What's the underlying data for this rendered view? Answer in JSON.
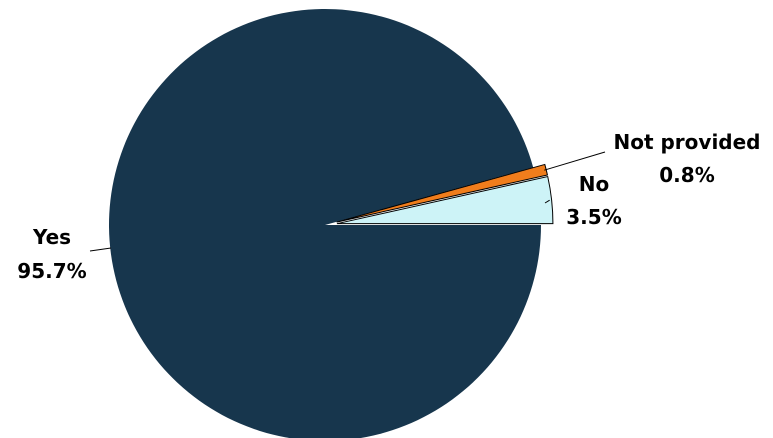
{
  "chart_data": {
    "type": "pie",
    "slices": [
      {
        "name": "Yes",
        "value": 95.7,
        "value_label": "95.7%",
        "color": "#17364d"
      },
      {
        "name": "No",
        "value": 3.5,
        "value_label": "3.5%",
        "color": "#cdf3f7"
      },
      {
        "name": "Not provided",
        "value": 0.8,
        "value_label": "0.8%",
        "color": "#f07d1c"
      }
    ],
    "exploded": [
      "No",
      "Not provided"
    ],
    "legend": "none",
    "start_angle": "3 o'clock, counter-clockwise"
  }
}
